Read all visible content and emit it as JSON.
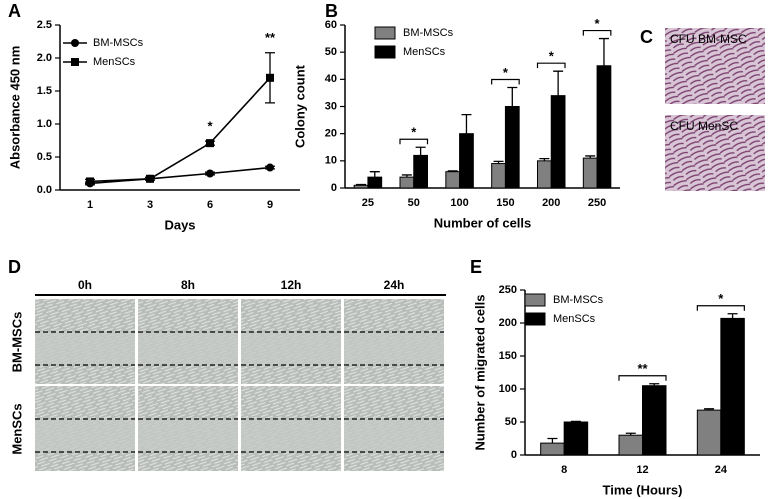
{
  "chart_data": [
    {
      "type": "line",
      "label": "A",
      "xlabel": "Days",
      "ylabel": "Absorbance 450 nm",
      "categories": [
        "1",
        "3",
        "6",
        "9"
      ],
      "series": [
        {
          "name": "BM-MSCs",
          "color": "#000000",
          "marker": "circle",
          "values": [
            0.1,
            0.17,
            0.25,
            0.34
          ],
          "errors": [
            0.02,
            0.02,
            0.02,
            0.02
          ]
        },
        {
          "name": "MenSCs",
          "color": "#000000",
          "marker": "square",
          "values": [
            0.13,
            0.17,
            0.71,
            1.7
          ],
          "errors": [
            0.03,
            0.02,
            0.03,
            0.38
          ]
        }
      ],
      "ylim": [
        0,
        2.5
      ],
      "yticks": [
        {
          "value": 0,
          "label": "0.0"
        },
        0.5,
        {
          "value": 1,
          "label": "1.0"
        },
        1.5,
        {
          "value": 2,
          "label": "2.0"
        },
        2.5
      ],
      "annotations": [
        {
          "text": "*",
          "category": "6"
        },
        {
          "text": "**",
          "category": "9"
        }
      ],
      "brackets": false
    },
    {
      "type": "bar",
      "label": "B",
      "xlabel": "Number of cells",
      "ylabel": "Colony count",
      "categories": [
        "25",
        "50",
        "100",
        "150",
        "200",
        "250"
      ],
      "series": [
        {
          "name": "BM-MSCs",
          "color": "#808080",
          "values": [
            1,
            4,
            6,
            9,
            10,
            11
          ],
          "errors": [
            0.3,
            0.8,
            0.3,
            0.8,
            0.8,
            0.8
          ]
        },
        {
          "name": "MenSCs",
          "color": "#000000",
          "values": [
            4,
            12,
            20,
            30,
            34,
            45
          ],
          "errors": [
            2,
            3,
            7,
            7,
            9,
            10
          ]
        }
      ],
      "ylim": [
        0,
        60
      ],
      "yticks": [
        0,
        10,
        20,
        30,
        40,
        50,
        60
      ],
      "annotations": [
        {
          "text": "*",
          "category": "50"
        },
        {
          "text": "*",
          "category": "150"
        },
        {
          "text": "*",
          "category": "200"
        },
        {
          "text": "*",
          "category": "250"
        }
      ],
      "brackets": true
    },
    {
      "type": "bar",
      "label": "E",
      "xlabel": "Time (Hours)",
      "ylabel": "Number of migrated cells",
      "categories": [
        "8",
        "12",
        "24"
      ],
      "series": [
        {
          "name": "BM-MSCs",
          "color": "#808080",
          "values": [
            18,
            30,
            68
          ],
          "errors": [
            7,
            3,
            2
          ]
        },
        {
          "name": "MenSCs",
          "color": "#000000",
          "values": [
            50,
            105,
            207
          ],
          "errors": [
            1,
            3,
            7
          ]
        }
      ],
      "ylim": [
        0,
        250
      ],
      "yticks": [
        0,
        50,
        100,
        150,
        200,
        250
      ],
      "annotations": [
        {
          "text": "**",
          "category": "12"
        },
        {
          "text": "*",
          "category": "24"
        }
      ],
      "brackets": true
    }
  ],
  "images": {
    "colony": {
      "label": "C",
      "captions": [
        "CFU BM-MSC",
        "CFU MenSC"
      ]
    },
    "scratch": {
      "label": "D",
      "columns": [
        "0h",
        "8h",
        "12h",
        "24h"
      ],
      "rows": [
        "BM-MSCs",
        "MenSCs"
      ]
    }
  }
}
